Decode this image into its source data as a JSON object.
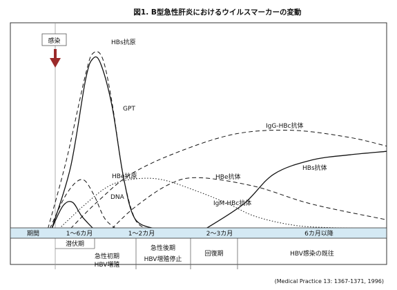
{
  "title": "図1. B型急性肝炎におけるウイルスマーカーの変動",
  "citation": "(Medical Practice 13: 1367-1371, 1996)",
  "infection_label": "感染",
  "chart_data": {
    "type": "line",
    "title": "図1. B型急性肝炎におけるウイルスマーカーの変動",
    "y_axis": "none (relative levels, no ticks)",
    "x_axis_note": "time after infection; x values are in months (approximate, read from band labels)",
    "xlim": [
      0,
      10
    ],
    "ylim": [
      0,
      1
    ],
    "grid": false,
    "period_header": "期間",
    "periods": [
      "1〜6カ月",
      "1〜2カ月",
      "2〜3カ月",
      "6カ月以降"
    ],
    "incubation_label": "潜伏期",
    "phases": [
      "急性初期\nHBV増殖",
      "急性後期\nHBV増殖停止",
      "回復期",
      "HBV感染の既往"
    ],
    "series": [
      {
        "name": "HBs抗原",
        "style": "dashed",
        "x": [
          1.0,
          1.5,
          2.0,
          2.2,
          2.45,
          2.7,
          3.0,
          3.3,
          3.6
        ],
        "y": [
          0.0,
          0.4,
          0.88,
          1.0,
          0.97,
          0.72,
          0.3,
          0.06,
          0.0
        ]
      },
      {
        "name": "GPT",
        "style": "solid",
        "x": [
          1.1,
          1.6,
          2.0,
          2.2,
          2.4,
          2.7,
          3.0,
          3.3,
          3.8
        ],
        "y": [
          0.0,
          0.35,
          0.85,
          0.97,
          0.94,
          0.7,
          0.3,
          0.06,
          0.0
        ]
      },
      {
        "name": "HBe抗原",
        "style": "dashed",
        "x": [
          1.05,
          1.5,
          1.9,
          2.2,
          2.5,
          2.8
        ],
        "y": [
          0.0,
          0.2,
          0.28,
          0.2,
          0.06,
          0.0
        ]
      },
      {
        "name": "DNA",
        "style": "solid",
        "x": [
          1.1,
          1.4,
          1.65,
          1.9,
          2.2
        ],
        "y": [
          0.0,
          0.13,
          0.15,
          0.07,
          0.0
        ]
      },
      {
        "name": "IgG-HBc抗体",
        "style": "dashed",
        "x": [
          1.6,
          2.3,
          3.2,
          4.5,
          6.0,
          7.5,
          9.0,
          10.0
        ],
        "y": [
          0.0,
          0.15,
          0.31,
          0.44,
          0.54,
          0.56,
          0.52,
          0.47
        ]
      },
      {
        "name": "HBe抗体",
        "style": "dashed",
        "x": [
          2.7,
          3.3,
          4.2,
          5.0,
          6.5,
          8.0,
          10.0
        ],
        "y": [
          0.0,
          0.12,
          0.25,
          0.29,
          0.24,
          0.14,
          0.05
        ]
      },
      {
        "name": "IgM-HBc抗体",
        "style": "dotted",
        "x": [
          1.3,
          2.0,
          2.6,
          3.2,
          4.0,
          5.0,
          5.8,
          6.5,
          7.5,
          8.5,
          10.0
        ],
        "y": [
          0.0,
          0.14,
          0.24,
          0.28,
          0.28,
          0.21,
          0.14,
          0.07,
          0.02,
          0.005,
          0.0
        ]
      },
      {
        "name": "HBs抗体",
        "style": "solid",
        "x": [
          5.2,
          6.2,
          7.0,
          8.0,
          9.0,
          10.0
        ],
        "y": [
          0.0,
          0.14,
          0.31,
          0.39,
          0.42,
          0.44
        ]
      }
    ]
  }
}
